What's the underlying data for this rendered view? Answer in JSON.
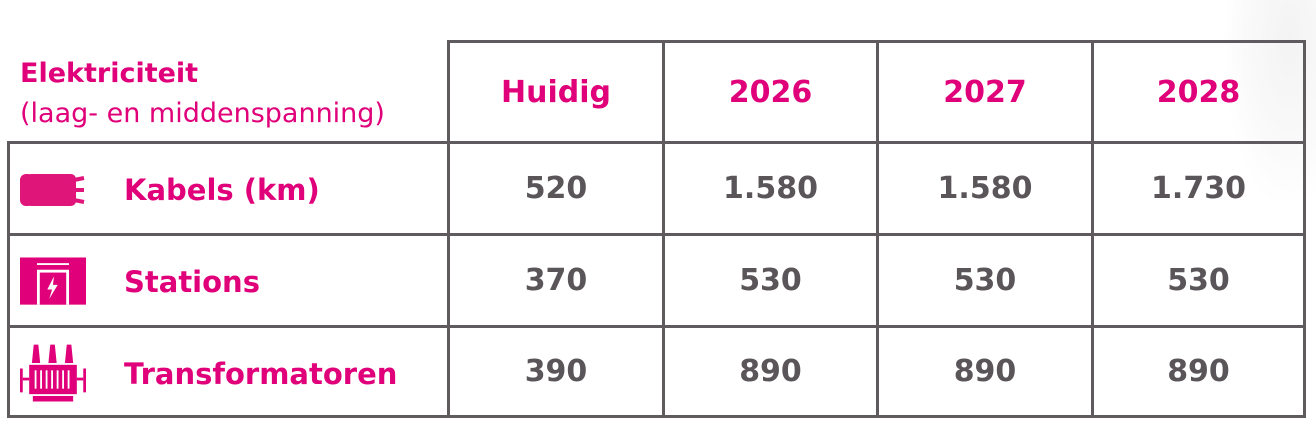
{
  "table": {
    "header": {
      "title": "Elektriciteit",
      "subtitle": "(laag- en middenspanning)"
    },
    "columns": [
      "Huidig",
      "2026",
      "2027",
      "2028"
    ],
    "rows": [
      {
        "label": "Kabels (km)",
        "icon": "cable-icon",
        "values": [
          "520",
          "1.580",
          "1.580",
          "1.730"
        ]
      },
      {
        "label": "Stations",
        "icon": "station-icon",
        "values": [
          "370",
          "530",
          "530",
          "530"
        ]
      },
      {
        "label": "Transformatoren",
        "icon": "transformer-icon",
        "values": [
          "390",
          "890",
          "890",
          "890"
        ]
      }
    ]
  },
  "colors": {
    "accent": "#e0007a",
    "text": "#5a5558",
    "border": "#5e5a5e"
  }
}
